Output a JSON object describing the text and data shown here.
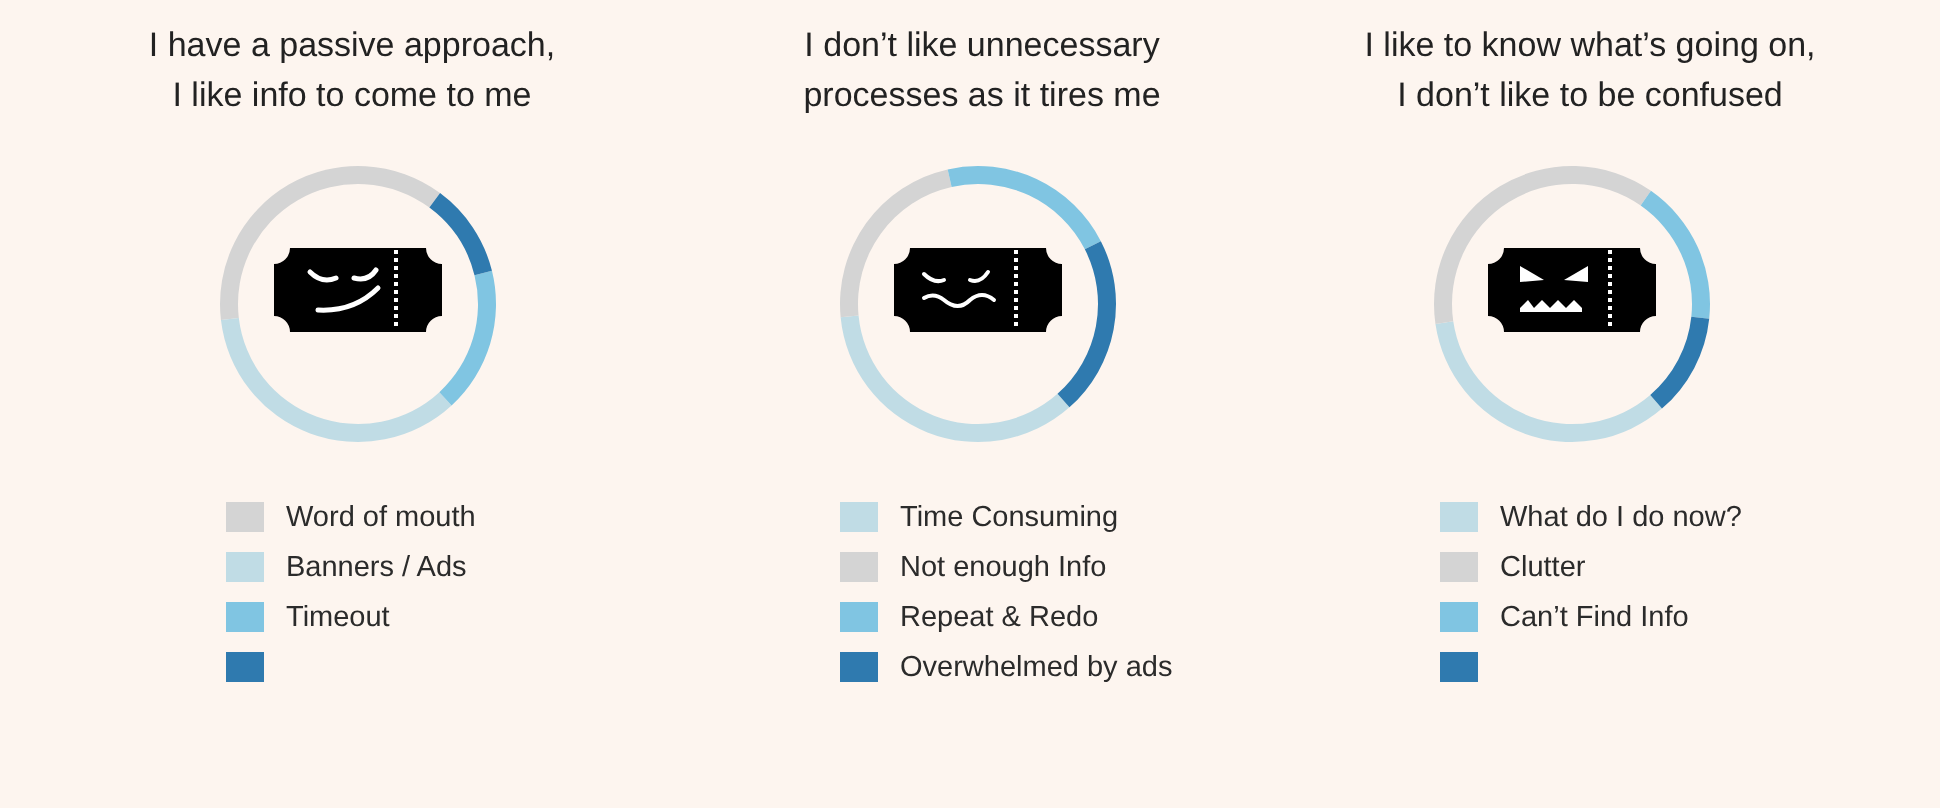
{
  "chart_data": [
    {
      "type": "donut",
      "title": "I have a passive approach,\nI like info to come to me",
      "categories": [
        "Word of mouth",
        "Banners / Ads",
        "Timeout",
        null
      ],
      "values": [
        37,
        35,
        17,
        11
      ],
      "colors": [
        "#d4d4d4",
        "#c0dce5",
        "#80c5e2",
        "#2f7aaf"
      ],
      "legend": "bottom"
    },
    {
      "type": "donut",
      "title": "I don’t like unnecessary\nprocesses as it tires me",
      "categories": [
        "Time Consuming",
        "Not enough Info",
        "Repeat & Redo",
        "Overwhelmed by ads"
      ],
      "values": [
        35,
        23,
        21,
        21
      ],
      "colors": [
        "#c0dce5",
        "#d4d4d4",
        "#80c5e2",
        "#2f7aaf"
      ],
      "legend": "bottom"
    },
    {
      "type": "donut",
      "title": "I like to know what’s going on,\nI don’t like to be confused",
      "categories": [
        "What do I do now?",
        "Clutter",
        "Can’t Find Info",
        null
      ],
      "values": [
        34,
        37,
        17,
        12
      ],
      "colors": [
        "#c0dce5",
        "#d4d4d4",
        "#80c5e2",
        "#2f7aaf"
      ],
      "legend": "bottom"
    }
  ]
}
